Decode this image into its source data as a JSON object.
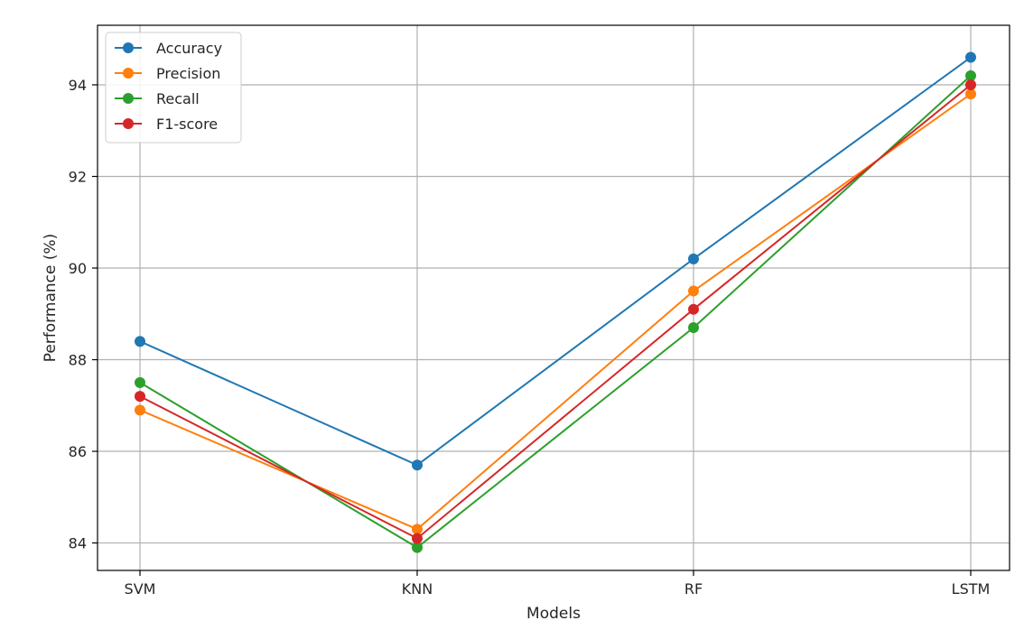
{
  "chart_data": {
    "type": "line",
    "title": "",
    "xlabel": "Models",
    "ylabel": "Performance (%)",
    "categories": [
      "SVM",
      "KNN",
      "RF",
      "LSTM"
    ],
    "ylim": [
      83.4,
      95.3
    ],
    "yticks": [
      84,
      86,
      88,
      90,
      92,
      94
    ],
    "grid": true,
    "legend_position": "top-left",
    "markers": true,
    "series": [
      {
        "name": "Accuracy",
        "color": "#1f77b4",
        "values": [
          88.4,
          85.7,
          90.2,
          94.6
        ]
      },
      {
        "name": "Precision",
        "color": "#ff7f0e",
        "values": [
          86.9,
          84.3,
          89.5,
          93.8
        ]
      },
      {
        "name": "Recall",
        "color": "#2ca02c",
        "values": [
          87.5,
          83.9,
          88.7,
          94.2
        ]
      },
      {
        "name": "F1-score",
        "color": "#d62728",
        "values": [
          87.2,
          84.1,
          89.1,
          94.0
        ]
      }
    ]
  }
}
